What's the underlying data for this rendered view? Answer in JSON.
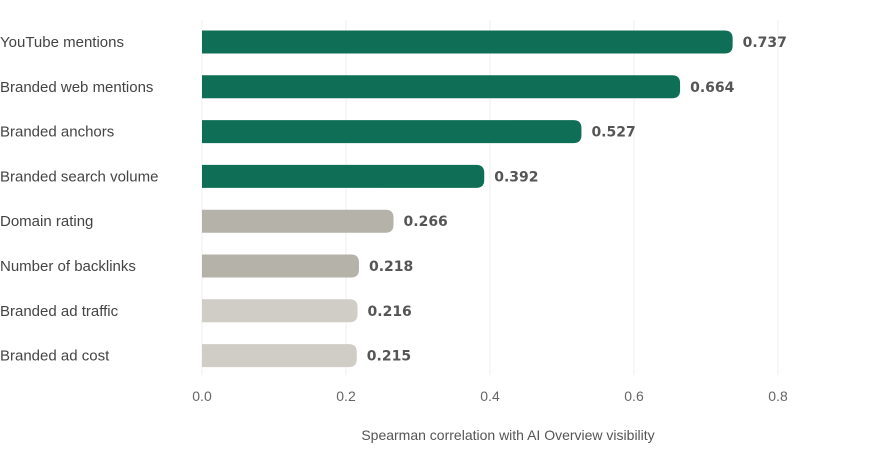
{
  "chart_data": {
    "type": "bar",
    "orientation": "horizontal",
    "categories": [
      "YouTube mentions",
      "Branded web mentions",
      "Branded anchors",
      "Branded search volume",
      "Domain rating",
      "Number of backlinks",
      "Branded ad traffic",
      "Branded ad cost"
    ],
    "values": [
      0.737,
      0.664,
      0.527,
      0.392,
      0.266,
      0.218,
      0.216,
      0.215
    ],
    "value_labels": [
      "0.737",
      "0.664",
      "0.527",
      "0.392",
      "0.266",
      "0.218",
      "0.216",
      "0.215"
    ],
    "bar_colors": [
      "#0f6e56",
      "#0f6e56",
      "#0f6e56",
      "#0f6e56",
      "#b5b2a9",
      "#b5b2a9",
      "#d0cdc6",
      "#d0cdc6"
    ],
    "xlabel": "Spearman correlation with AI Overview visibility",
    "ylabel": "",
    "title": "",
    "xlim": [
      0,
      0.85
    ],
    "xticks": [
      0,
      0.2,
      0.4,
      0.6,
      0.8
    ],
    "xtick_labels": [
      "0.0",
      "0.2",
      "0.4",
      "0.6",
      "0.8"
    ],
    "grid": "vertical",
    "legend": "none"
  }
}
